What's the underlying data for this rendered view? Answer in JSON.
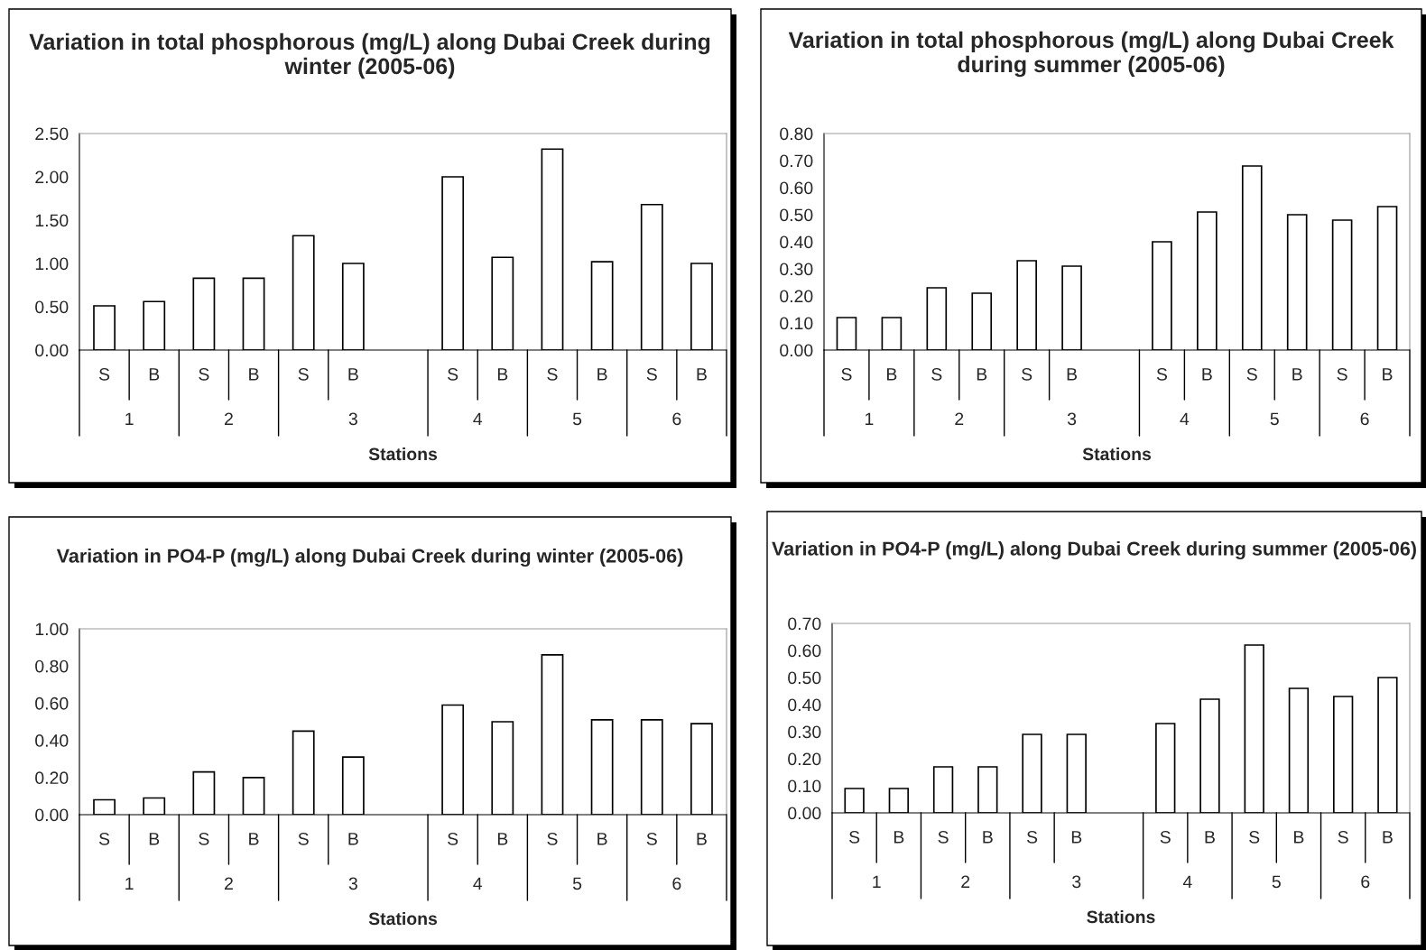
{
  "chart_data": [
    {
      "type": "bar",
      "title": "Variation in total phosphorous (mg/L) along Dubai Creek during winter (2005-06)",
      "xlabel": "Stations",
      "categories": [
        "S",
        "B",
        "S",
        "B",
        "S",
        "B",
        null,
        "S",
        "B",
        "S",
        "B",
        "S",
        "B"
      ],
      "annotations": [
        "1",
        "2",
        "3",
        "4",
        "5",
        "6"
      ],
      "color": "#ffffff",
      "values": [
        0.51,
        0.56,
        0.83,
        0.83,
        1.32,
        1.0,
        null,
        2.0,
        1.07,
        2.32,
        1.02,
        1.68,
        1.0
      ],
      "ylim": [
        0,
        2.5
      ],
      "yticks": [
        {
          "value": 0,
          "label": "0.00"
        },
        {
          "value": 0.5,
          "label": "0.50"
        },
        {
          "value": 1.0,
          "label": "1.00"
        },
        {
          "value": 1.5,
          "label": "1.50"
        },
        {
          "value": 2.0,
          "label": "2.00"
        },
        {
          "value": 2.5,
          "label": "2.50"
        }
      ],
      "grid": false,
      "legend": false
    },
    {
      "type": "bar",
      "title": "Variation in total phosphorous (mg/L) along Dubai Creek during summer (2005-06)",
      "xlabel": "Stations",
      "categories": [
        "S",
        "B",
        "S",
        "B",
        "S",
        "B",
        null,
        "S",
        "B",
        "S",
        "B",
        "S",
        "B"
      ],
      "annotations": [
        "1",
        "2",
        "3",
        "4",
        "5",
        "6"
      ],
      "color": "#ffffff",
      "values": [
        0.12,
        0.12,
        0.23,
        0.21,
        0.33,
        0.31,
        null,
        0.4,
        0.51,
        0.68,
        0.5,
        0.48,
        0.53
      ],
      "ylim": [
        0,
        0.8
      ],
      "yticks": [
        {
          "value": 0,
          "label": "0.00"
        },
        {
          "value": 0.1,
          "label": "0.10"
        },
        {
          "value": 0.2,
          "label": "0.20"
        },
        {
          "value": 0.3,
          "label": "0.30"
        },
        {
          "value": 0.4,
          "label": "0.40"
        },
        {
          "value": 0.5,
          "label": "0.50"
        },
        {
          "value": 0.6,
          "label": "0.60"
        },
        {
          "value": 0.7,
          "label": "0.70"
        },
        {
          "value": 0.8,
          "label": "0.80"
        }
      ],
      "grid": false,
      "legend": false
    },
    {
      "type": "bar",
      "title": "Variation in PO4-P (mg/L) along Dubai Creek during winter (2005-06)",
      "xlabel": "Stations",
      "categories": [
        "S",
        "B",
        "S",
        "B",
        "S",
        "B",
        null,
        "S",
        "B",
        "S",
        "B",
        "S",
        "B"
      ],
      "annotations": [
        "1",
        "2",
        "3",
        "4",
        "5",
        "6"
      ],
      "color": "#ffffff",
      "values": [
        0.08,
        0.09,
        0.23,
        0.2,
        0.45,
        0.31,
        null,
        0.59,
        0.5,
        0.86,
        0.51,
        0.51,
        0.49
      ],
      "ylim": [
        0,
        1.0
      ],
      "yticks": [
        {
          "value": 0,
          "label": "0.00"
        },
        {
          "value": 0.2,
          "label": "0.20"
        },
        {
          "value": 0.4,
          "label": "0.40"
        },
        {
          "value": 0.6,
          "label": "0.60"
        },
        {
          "value": 0.8,
          "label": "0.80"
        },
        {
          "value": 1.0,
          "label": "1.00"
        }
      ],
      "grid": false,
      "legend": false
    },
    {
      "type": "bar",
      "title": "Variation in PO4-P (mg/L) along Dubai Creek during summer (2005-06)",
      "xlabel": "Stations",
      "categories": [
        "S",
        "B",
        "S",
        "B",
        "S",
        "B",
        null,
        "S",
        "B",
        "S",
        "B",
        "S",
        "B"
      ],
      "annotations": [
        "1",
        "2",
        "3",
        "4",
        "5",
        "6"
      ],
      "color": "#ffffff",
      "values": [
        0.09,
        0.09,
        0.17,
        0.17,
        0.29,
        0.29,
        null,
        0.33,
        0.42,
        0.62,
        0.46,
        0.43,
        0.5
      ],
      "ylim": [
        0,
        0.7
      ],
      "yticks": [
        {
          "value": 0,
          "label": "0.00"
        },
        {
          "value": 0.1,
          "label": "0.10"
        },
        {
          "value": 0.2,
          "label": "0.20"
        },
        {
          "value": 0.3,
          "label": "0.30"
        },
        {
          "value": 0.4,
          "label": "0.40"
        },
        {
          "value": 0.5,
          "label": "0.50"
        },
        {
          "value": 0.6,
          "label": "0.60"
        },
        {
          "value": 0.7,
          "label": "0.70"
        }
      ],
      "grid": false,
      "legend": false
    }
  ]
}
